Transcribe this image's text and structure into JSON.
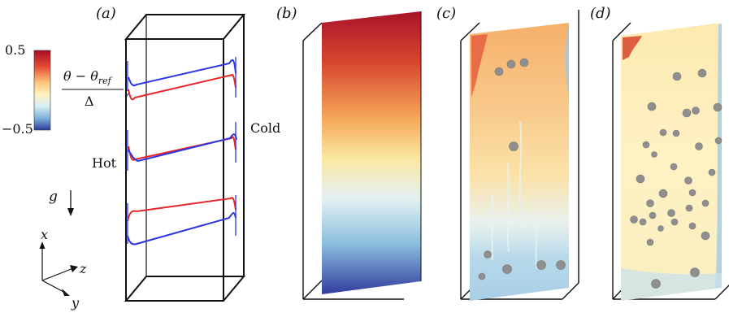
{
  "panels": {
    "a": "(a)",
    "b": "(b)",
    "c": "(c)",
    "d": "(d)"
  },
  "colorbar": {
    "max_label": "0.5",
    "min_label": "−0.5",
    "formula_numerator_theta": "θ",
    "formula_minus": " − ",
    "formula_numerator_ref": "θ",
    "formula_ref_sub": "ref",
    "formula_denominator": "Δ",
    "colors": [
      "#b2182b",
      "#e34a33",
      "#fdae61",
      "#fee090",
      "#e0f3f8",
      "#92c5de",
      "#4393c3",
      "#2c3a9c"
    ]
  },
  "labels": {
    "hot": "Hot",
    "cold": "Cold",
    "gravity": "g"
  },
  "axes": {
    "x": "x",
    "y": "y",
    "z": "z"
  },
  "colors": {
    "hot_line": "#e8262a",
    "cold_line": "#2b35e0",
    "frame": "#111111",
    "bubble": "#8f8f8f"
  }
}
